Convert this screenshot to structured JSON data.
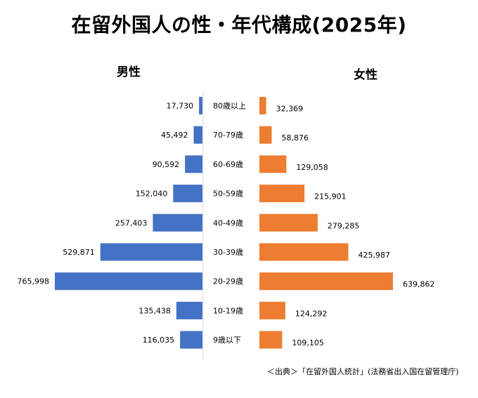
{
  "chart_data": {
    "type": "bar",
    "title": "在留外国人の性・年代構成(2025年)",
    "categories": [
      "80歳以上",
      "70-79歳",
      "60-69歳",
      "50-59歳",
      "40-49歳",
      "30-39歳",
      "20-29歳",
      "10-19歳",
      "9歳以下"
    ],
    "series": [
      {
        "name": "男性",
        "values": [
          17730,
          45492,
          90592,
          152040,
          257403,
          529871,
          765998,
          135438,
          116035
        ],
        "labels": [
          "17,730",
          "45,492",
          "90,592",
          "152,040",
          "257,403",
          "529,871",
          "765,998",
          "135,438",
          "116,035"
        ],
        "color": "#4472c4"
      },
      {
        "name": "女性",
        "values": [
          32369,
          58876,
          129058,
          215901,
          279285,
          425987,
          639862,
          124292,
          109105
        ],
        "labels": [
          "32,369",
          "58,876",
          "129,058",
          "215,901",
          "279,285",
          "425,987",
          "639,862",
          "124,292",
          "109,105"
        ],
        "color": "#ed7d31"
      }
    ],
    "source": "＜出典＞「在留外国人統計」(法務省出入国在留管理庁)"
  }
}
